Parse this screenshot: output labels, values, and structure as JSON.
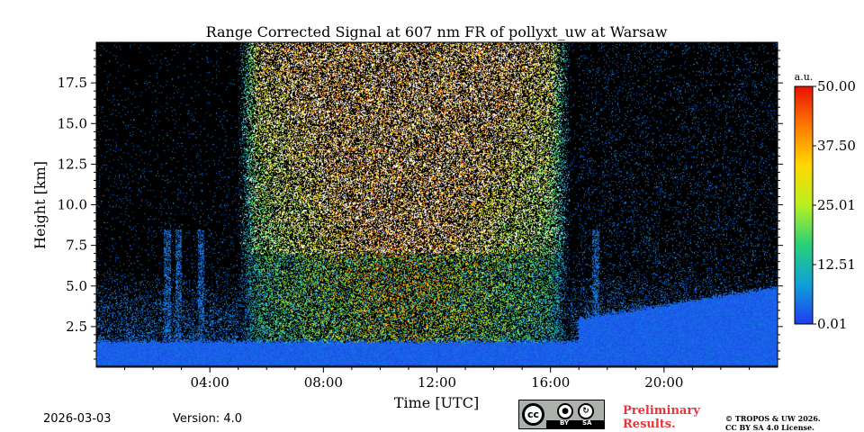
{
  "chart_data": {
    "type": "heatmap",
    "title": "Range Corrected Signal at 607 nm FR of pollyxt_uw at Warsaw",
    "xlabel": "Time [UTC]",
    "ylabel": "Height [km]",
    "xlim": [
      0,
      24
    ],
    "ylim": [
      0,
      20
    ],
    "x_ticks": [
      {
        "value": 4,
        "label": "04:00"
      },
      {
        "value": 8,
        "label": "08:00"
      },
      {
        "value": 12,
        "label": "12:00"
      },
      {
        "value": 16,
        "label": "16:00"
      },
      {
        "value": 20,
        "label": "20:00"
      }
    ],
    "y_ticks": [
      {
        "value": 2.5,
        "label": "2.5"
      },
      {
        "value": 5.0,
        "label": "5.0"
      },
      {
        "value": 7.5,
        "label": "7.5"
      },
      {
        "value": 10.0,
        "label": "10.0"
      },
      {
        "value": 12.5,
        "label": "12.5"
      },
      {
        "value": 15.0,
        "label": "15.0"
      },
      {
        "value": 17.5,
        "label": "17.5"
      }
    ],
    "colorbar": {
      "unit": "a.u.",
      "min": 0.01,
      "max": 50.0,
      "ticks": [
        {
          "value": 0.01,
          "label": "0.01"
        },
        {
          "value": 12.51,
          "label": "12.51"
        },
        {
          "value": 25.01,
          "label": "25.01"
        },
        {
          "value": 37.5,
          "label": "37.50"
        },
        {
          "value": 50.0,
          "label": "50.00"
        }
      ],
      "colormap": [
        "#1f3cf0",
        "#0fa0d8",
        "#29d07a",
        "#b8f020",
        "#ffd800",
        "#ff7a00",
        "#e81000"
      ]
    },
    "features": {
      "daylight_noise_period": [
        5.0,
        16.7
      ],
      "boundary_layer_top_km": 1.6,
      "boundary_layer_top_night_km": 5.0,
      "rain_column_times": [
        2.5,
        2.9,
        3.7,
        17.6
      ]
    }
  },
  "footer": {
    "date": "2026-03-03",
    "version": "Version: 4.0",
    "cc_by": "BY",
    "cc_sa": "SA",
    "cc_mark": "cc",
    "preliminary": "Preliminary\nResults.",
    "license": "© TROPOS & UW 2026.\nCC BY SA 4.0 License."
  }
}
